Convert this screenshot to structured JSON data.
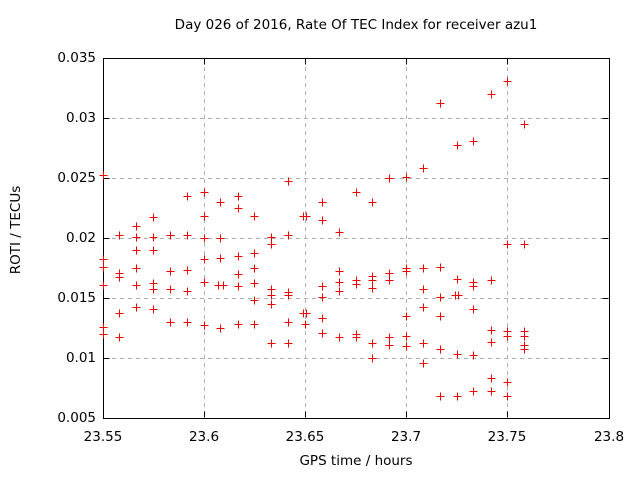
{
  "chart_data": {
    "type": "scatter",
    "title": "Day 026 of 2016, Rate Of TEC Index for receiver azu1",
    "xlabel": "GPS time / hours",
    "ylabel": "ROTI / TECUs",
    "xlim": [
      23.55,
      23.8
    ],
    "ylim": [
      0.005,
      0.035
    ],
    "x_ticks": [
      23.55,
      23.6,
      23.65,
      23.7,
      23.75,
      23.8
    ],
    "x_tick_labels": [
      "23.55",
      "23.6",
      "23.65",
      "23.7",
      "23.75",
      "23.8"
    ],
    "y_ticks": [
      0.005,
      0.01,
      0.015,
      0.02,
      0.025,
      0.03,
      0.035
    ],
    "y_tick_labels": [
      "0.005",
      "0.01",
      "0.015",
      "0.02",
      "0.025",
      "0.03",
      "0.035"
    ],
    "grid": true,
    "legend": false,
    "marker": "plus",
    "style": {
      "marker_color": "#ee0000",
      "grid_color": "#b0b0b0",
      "axis_color": "#000000",
      "text_color": "#000000",
      "background": "#ffffff"
    },
    "series": [
      {
        "name": "ROTI",
        "points": [
          [
            23.55,
            0.02525
          ],
          [
            23.55,
            0.01817
          ],
          [
            23.55,
            0.01758
          ],
          [
            23.55,
            0.01608
          ],
          [
            23.55,
            0.01258
          ],
          [
            23.55,
            0.01192
          ],
          [
            23.5583,
            0.02025
          ],
          [
            23.5583,
            0.01708
          ],
          [
            23.5583,
            0.01675
          ],
          [
            23.5583,
            0.01367
          ],
          [
            23.5583,
            0.01175
          ],
          [
            23.5667,
            0.02092
          ],
          [
            23.5667,
            0.02008
          ],
          [
            23.5667,
            0.01892
          ],
          [
            23.5667,
            0.0175
          ],
          [
            23.5667,
            0.01608
          ],
          [
            23.5667,
            0.01417
          ],
          [
            23.575,
            0.02167
          ],
          [
            23.575,
            0.02008
          ],
          [
            23.575,
            0.01892
          ],
          [
            23.575,
            0.01617
          ],
          [
            23.575,
            0.01575
          ],
          [
            23.575,
            0.01408
          ],
          [
            23.5833,
            0.02017
          ],
          [
            23.5833,
            0.01717
          ],
          [
            23.5833,
            0.01567
          ],
          [
            23.5833,
            0.01292
          ],
          [
            23.5917,
            0.02342
          ],
          [
            23.5917,
            0.02017
          ],
          [
            23.5917,
            0.01733
          ],
          [
            23.5917,
            0.01558
          ],
          [
            23.5917,
            0.013
          ],
          [
            23.6,
            0.02383
          ],
          [
            23.6,
            0.02183
          ],
          [
            23.6,
            0.01992
          ],
          [
            23.6,
            0.01817
          ],
          [
            23.6,
            0.01633
          ],
          [
            23.6,
            0.01275
          ],
          [
            23.6083,
            0.02292
          ],
          [
            23.6083,
            0.02
          ],
          [
            23.6083,
            0.01833
          ],
          [
            23.6073,
            0.01608
          ],
          [
            23.6093,
            0.01608
          ],
          [
            23.6083,
            0.0125
          ],
          [
            23.6167,
            0.02342
          ],
          [
            23.6167,
            0.02242
          ],
          [
            23.6167,
            0.01842
          ],
          [
            23.6167,
            0.01692
          ],
          [
            23.6167,
            0.016
          ],
          [
            23.6167,
            0.01283
          ],
          [
            23.625,
            0.02183
          ],
          [
            23.625,
            0.01875
          ],
          [
            23.625,
            0.0175
          ],
          [
            23.625,
            0.01617
          ],
          [
            23.625,
            0.01483
          ],
          [
            23.625,
            0.01283
          ],
          [
            23.6333,
            0.02008
          ],
          [
            23.6333,
            0.0195
          ],
          [
            23.6333,
            0.01567
          ],
          [
            23.6333,
            0.01525
          ],
          [
            23.6333,
            0.01442
          ],
          [
            23.6333,
            0.01125
          ],
          [
            23.6417,
            0.02467
          ],
          [
            23.6417,
            0.02017
          ],
          [
            23.6417,
            0.0155
          ],
          [
            23.6417,
            0.01517
          ],
          [
            23.6417,
            0.013
          ],
          [
            23.6417,
            0.01117
          ],
          [
            23.6493,
            0.02183
          ],
          [
            23.6507,
            0.02183
          ],
          [
            23.6493,
            0.01367
          ],
          [
            23.6507,
            0.01367
          ],
          [
            23.65,
            0.01283
          ],
          [
            23.6583,
            0.02292
          ],
          [
            23.6583,
            0.02142
          ],
          [
            23.6583,
            0.016
          ],
          [
            23.6583,
            0.01508
          ],
          [
            23.6583,
            0.01333
          ],
          [
            23.6583,
            0.01208
          ],
          [
            23.6667,
            0.02042
          ],
          [
            23.6667,
            0.01725
          ],
          [
            23.6667,
            0.01633
          ],
          [
            23.6667,
            0.01558
          ],
          [
            23.6667,
            0.01167
          ],
          [
            23.675,
            0.02383
          ],
          [
            23.675,
            0.0165
          ],
          [
            23.675,
            0.01611
          ],
          [
            23.675,
            0.012
          ],
          [
            23.675,
            0.01175
          ],
          [
            23.6833,
            0.023
          ],
          [
            23.6833,
            0.01683
          ],
          [
            23.6833,
            0.0165
          ],
          [
            23.6833,
            0.01583
          ],
          [
            23.6833,
            0.01125
          ],
          [
            23.6833,
            0.00992
          ],
          [
            23.6917,
            0.02492
          ],
          [
            23.6917,
            0.01708
          ],
          [
            23.6917,
            0.01642
          ],
          [
            23.6917,
            0.01167
          ],
          [
            23.6917,
            0.01108
          ],
          [
            23.7,
            0.02508
          ],
          [
            23.7,
            0.01742
          ],
          [
            23.7,
            0.01725
          ],
          [
            23.7,
            0.01342
          ],
          [
            23.7,
            0.01183
          ],
          [
            23.7,
            0.01092
          ],
          [
            23.7083,
            0.02583
          ],
          [
            23.7083,
            0.0175
          ],
          [
            23.7083,
            0.01575
          ],
          [
            23.7083,
            0.01425
          ],
          [
            23.7083,
            0.01125
          ],
          [
            23.7083,
            0.00958
          ],
          [
            23.7167,
            0.03117
          ],
          [
            23.7167,
            0.01758
          ],
          [
            23.7167,
            0.01508
          ],
          [
            23.7167,
            0.0135
          ],
          [
            23.7167,
            0.01075
          ],
          [
            23.7167,
            0.00683
          ],
          [
            23.725,
            0.02767
          ],
          [
            23.725,
            0.01658
          ],
          [
            23.7243,
            0.01517
          ],
          [
            23.7257,
            0.01517
          ],
          [
            23.725,
            0.01033
          ],
          [
            23.725,
            0.00683
          ],
          [
            23.7333,
            0.02808
          ],
          [
            23.7333,
            0.01633
          ],
          [
            23.7333,
            0.016
          ],
          [
            23.7333,
            0.01408
          ],
          [
            23.7333,
            0.01017
          ],
          [
            23.7333,
            0.00725
          ],
          [
            23.7417,
            0.032
          ],
          [
            23.7417,
            0.0165
          ],
          [
            23.7417,
            0.01233
          ],
          [
            23.7417,
            0.01133
          ],
          [
            23.7417,
            0.00833
          ],
          [
            23.7417,
            0.00725
          ],
          [
            23.75,
            0.03308
          ],
          [
            23.75,
            0.01942
          ],
          [
            23.75,
            0.01217
          ],
          [
            23.75,
            0.01183
          ],
          [
            23.75,
            0.00792
          ],
          [
            23.75,
            0.00683
          ],
          [
            23.7583,
            0.02942
          ],
          [
            23.7583,
            0.01942
          ],
          [
            23.7583,
            0.01217
          ],
          [
            23.7583,
            0.01183
          ],
          [
            23.7583,
            0.01108
          ],
          [
            23.7583,
            0.01075
          ]
        ]
      }
    ]
  }
}
